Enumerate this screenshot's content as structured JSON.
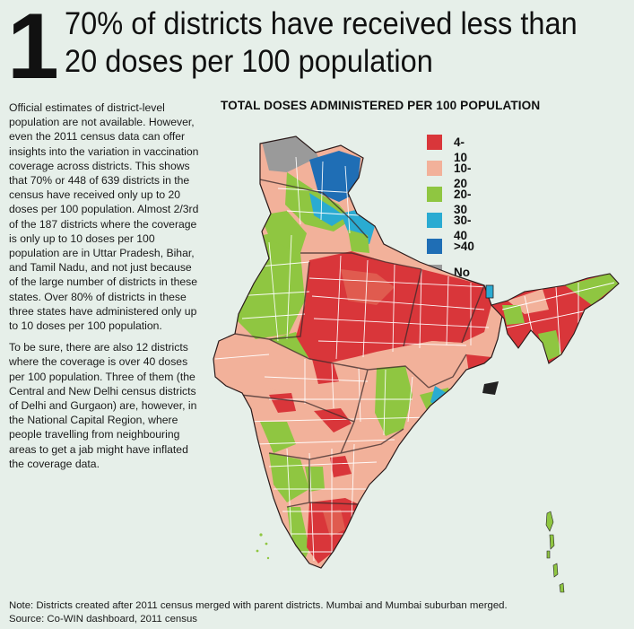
{
  "header": {
    "number": "1",
    "title_line1": "70% of districts have received less than",
    "title_line2": "20 doses per 100 population"
  },
  "body": {
    "paragraph1": "Official estimates of district-level population are not available. However, even the 2011 census data can offer insights into the variation in vaccination coverage across districts. This shows that 70% or 448 of 639 districts in the census have received only up to 20 doses per 100 population. Almost 2/3rd of the 187 districts where the coverage is only up to 10 doses per 100 population are in Uttar Pradesh, Bihar, and Tamil Nadu, and not just because of the large number of districts in these states. Over 80% of districts in these three states have administered only up to 10 doses per 100 population.",
    "paragraph2": "To be sure, there are also 12 districts where the coverage is over 40 doses per 100 population. Three of them (the Central and New Delhi census districts of Delhi and Gurgaon) are, however, in the National Capital Region, where people travelling from neighbouring areas to get a jab might have inflated the coverage data."
  },
  "map": {
    "title": "TOTAL DOSES ADMINISTERED PER 100 POPULATION",
    "legend": [
      {
        "label": "4-10",
        "color": "#d9363a"
      },
      {
        "label": "10-20",
        "color": "#f2b19a"
      },
      {
        "label": "20-30",
        "color": "#8fc641"
      },
      {
        "label": ">40",
        "color": "#1f6eb5"
      },
      {
        "label": "30-40",
        "color": "#2aabd2"
      },
      {
        "label": "No data",
        "color": "#9a9a9a"
      }
    ]
  },
  "footer": {
    "note": "Note: Districts created after 2011 census merged with parent districts. Mumbai and Mumbai suburban merged.",
    "source": "Source: Co-WIN dashboard, 2011 census"
  }
}
